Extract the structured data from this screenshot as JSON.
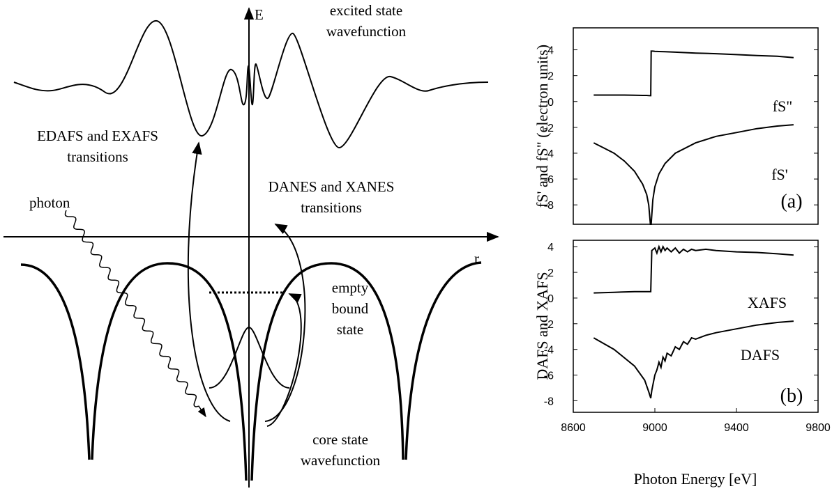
{
  "diagram": {
    "axis_e": "E",
    "axis_r": "r",
    "excited": [
      "excited state",
      "wavefunction"
    ],
    "edafs": [
      "EDAFS and EXAFS",
      "transitions"
    ],
    "danes": [
      "DANES and XANES",
      "transitions"
    ],
    "photon": "photon",
    "empty": [
      "empty",
      "bound",
      "state"
    ],
    "core": [
      "core state",
      "wavefunction"
    ]
  },
  "x_axis_label": "Photon Energy [eV]",
  "chart_data": [
    {
      "type": "line",
      "panel_label": "(a)",
      "y_label": "fS' and fS\" (electron units)",
      "x": [
        8700,
        8750,
        8800,
        8850,
        8900,
        8940,
        8960,
        8970,
        8978,
        8980,
        8982,
        8990,
        9000,
        9020,
        9050,
        9100,
        9200,
        9300,
        9400,
        9500,
        9600,
        9680
      ],
      "series": [
        {
          "name": "fS\"",
          "color": "#000000",
          "values": [
            0.5,
            0.5,
            0.5,
            0.5,
            0.48,
            0.47,
            0.47,
            0.46,
            0.45,
            0.45,
            3.9,
            3.9,
            3.88,
            3.87,
            3.85,
            3.82,
            3.75,
            3.7,
            3.63,
            3.56,
            3.5,
            3.4
          ]
        },
        {
          "name": "fS'",
          "color": "#000000",
          "values": [
            -3.2,
            -3.6,
            -4.0,
            -4.6,
            -5.4,
            -6.4,
            -7.2,
            -8.0,
            -9.5,
            -9.5,
            -9.5,
            -7.6,
            -6.6,
            -5.6,
            -4.8,
            -4.0,
            -3.2,
            -2.7,
            -2.4,
            -2.1,
            -1.9,
            -1.8
          ]
        }
      ],
      "xlim": [
        8600,
        9800
      ],
      "ylim": [
        -9.5,
        5.7
      ],
      "yticks": [
        4,
        2,
        0,
        -2,
        -4,
        -6,
        -8
      ]
    },
    {
      "type": "line",
      "panel_label": "(b)",
      "y_label": "DAFS and XAFS",
      "x": [
        8700,
        8800,
        8900,
        8950,
        8970,
        8980,
        8985,
        9000,
        9010,
        9020,
        9030,
        9040,
        9050,
        9060,
        9080,
        9100,
        9120,
        9140,
        9160,
        9180,
        9200,
        9250,
        9300,
        9400,
        9500,
        9600,
        9680
      ],
      "series": [
        {
          "name": "XAFS",
          "color": "#000000",
          "values": [
            0.4,
            0.45,
            0.5,
            0.5,
            0.5,
            0.5,
            3.7,
            3.9,
            3.5,
            4.0,
            3.6,
            4.0,
            3.7,
            3.9,
            3.6,
            3.9,
            3.5,
            3.8,
            3.6,
            3.8,
            3.7,
            3.8,
            3.7,
            3.6,
            3.55,
            3.45,
            3.35
          ]
        },
        {
          "name": "DAFS",
          "color": "#000000",
          "values": [
            -3.1,
            -4.0,
            -5.3,
            -6.4,
            -7.3,
            -7.8,
            -7.2,
            -6.0,
            -5.6,
            -5.0,
            -5.4,
            -4.6,
            -4.9,
            -4.3,
            -4.5,
            -3.8,
            -4.0,
            -3.4,
            -3.6,
            -3.1,
            -3.2,
            -2.9,
            -2.7,
            -2.4,
            -2.1,
            -1.9,
            -1.8
          ]
        }
      ],
      "xlim": [
        8600,
        9800
      ],
      "ylim": [
        -8.9,
        4.5
      ],
      "yticks": [
        4,
        2,
        0,
        -2,
        -4,
        -6,
        -8
      ],
      "xticks": [
        8600,
        9000,
        9400,
        9800
      ]
    }
  ]
}
